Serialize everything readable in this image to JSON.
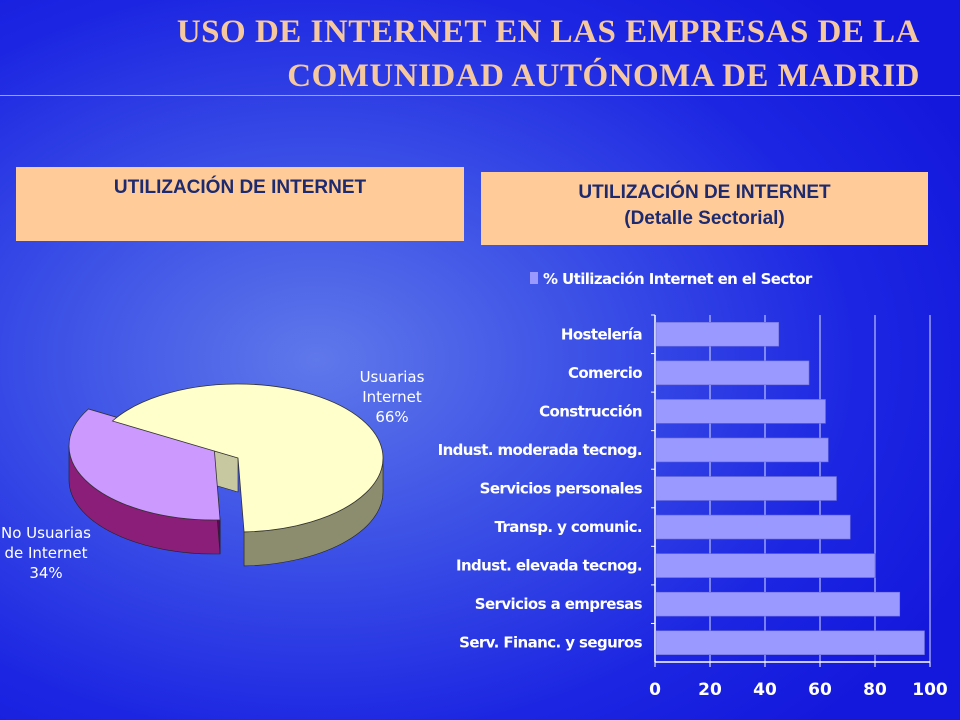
{
  "title": {
    "line1": "USO DE INTERNET EN LAS EMPRESAS DE LA",
    "line2": "COMUNIDAD AUTÓNOMA DE MADRID"
  },
  "panel_left": {
    "heading": "UTILIZACIÓN DE INTERNET"
  },
  "panel_right": {
    "heading_line1": "UTILIZACIÓN DE INTERNET",
    "heading_line2": "(Detalle Sectorial)"
  },
  "colors": {
    "pie_usuarias": "#ffffcc",
    "pie_no_usuarias": "#cc99ff",
    "bar": "#9999ff",
    "panel_heading_bg": "#ffcc99",
    "title_text": "#f5c8a0"
  },
  "chart_data": [
    {
      "type": "pie",
      "title": "UTILIZACIÓN DE INTERNET",
      "style": "3d-exploded",
      "slices": [
        {
          "label_line1": "Usuarias",
          "label_line2": "Internet",
          "label_pct": "66%",
          "value": 66
        },
        {
          "label_line1": "No Usuarias",
          "label_line2": "de Internet",
          "label_pct": "34%",
          "value": 34
        }
      ]
    },
    {
      "type": "bar",
      "orientation": "horizontal",
      "title": "UTILIZACIÓN DE INTERNET (Detalle Sectorial)",
      "categories": [
        "Hostelería",
        "Comercio",
        "Construcción",
        "Indust. moderada tecnog.",
        "Servicios personales",
        "Transp. y comunic.",
        "Indust. elevada tecnog.",
        "Servicios a empresas",
        "Serv. Financ. y seguros"
      ],
      "series": [
        {
          "name": "% Utilización Internet en el Sector",
          "values": [
            45,
            56,
            62,
            63,
            66,
            71,
            80,
            89,
            98
          ]
        }
      ],
      "xlim": [
        0,
        100
      ],
      "xticks": [
        0,
        20,
        40,
        60,
        80,
        100
      ],
      "grid": true,
      "legend_position": "top"
    }
  ]
}
